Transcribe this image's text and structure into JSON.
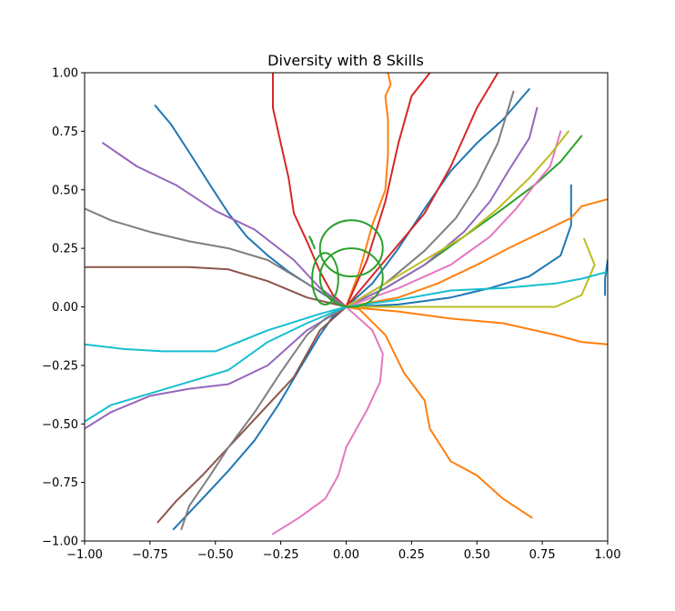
{
  "chart_data": {
    "type": "line",
    "title": "Diversity with 8 Skills",
    "xlabel": "",
    "ylabel": "",
    "xlim": [
      -1.0,
      1.0
    ],
    "ylim": [
      -1.0,
      1.0
    ],
    "grid": false,
    "legend": "none",
    "x_ticks": [
      "−1.00",
      "−0.75",
      "−0.50",
      "−0.25",
      "0.00",
      "0.25",
      "0.50",
      "0.75",
      "1.00"
    ],
    "y_ticks": [
      "−1.00",
      "−0.75",
      "−0.50",
      "−0.25",
      "0.00",
      "0.25",
      "0.50",
      "0.75",
      "1.00"
    ],
    "x_tick_values": [
      -1.0,
      -0.75,
      -0.5,
      -0.25,
      0.0,
      0.25,
      0.5,
      0.75,
      1.0
    ],
    "y_tick_values": [
      -1.0,
      -0.75,
      -0.5,
      -0.25,
      0.0,
      0.25,
      0.5,
      0.75,
      1.0
    ],
    "series": [
      {
        "color": "#1f77b4",
        "x": [
          0.0,
          -0.08,
          -0.15,
          -0.22,
          -0.3,
          -0.38,
          -0.45,
          -0.52,
          -0.6,
          -0.67,
          -0.73
        ],
        "y": [
          0.0,
          0.05,
          0.1,
          0.15,
          0.22,
          0.3,
          0.4,
          0.52,
          0.66,
          0.78,
          0.86
        ]
      },
      {
        "color": "#1f77b4",
        "x": [
          0.0,
          -0.05,
          -0.1,
          -0.17,
          -0.26,
          -0.35,
          -0.45,
          -0.55,
          -0.66
        ],
        "y": [
          0.0,
          -0.04,
          -0.12,
          -0.25,
          -0.42,
          -0.57,
          -0.7,
          -0.82,
          -0.95
        ]
      },
      {
        "color": "#1f77b4",
        "x": [
          0.0,
          0.1,
          0.2,
          0.3,
          0.4,
          0.5,
          0.6,
          0.7
        ],
        "y": [
          0.0,
          0.1,
          0.25,
          0.42,
          0.58,
          0.7,
          0.8,
          0.93
        ]
      },
      {
        "color": "#1f77b4",
        "x": [
          0.0,
          0.2,
          0.4,
          0.55,
          0.7,
          0.82,
          0.86,
          0.86
        ],
        "y": [
          0.0,
          0.01,
          0.04,
          0.08,
          0.13,
          0.22,
          0.35,
          0.52
        ]
      },
      {
        "color": "#1f77b4",
        "x": [
          0.99,
          0.99,
          1.0
        ],
        "y": [
          0.05,
          0.12,
          0.2
        ]
      },
      {
        "color": "#ff7f0e",
        "x": [
          0.0,
          0.05,
          0.15,
          0.22,
          0.3,
          0.32,
          0.4,
          0.5,
          0.6,
          0.71
        ],
        "y": [
          0.0,
          -0.01,
          -0.12,
          -0.28,
          -0.4,
          -0.52,
          -0.66,
          -0.72,
          -0.82,
          -0.9
        ]
      },
      {
        "color": "#ff7f0e",
        "x": [
          0.0,
          0.05,
          0.1,
          0.15,
          0.16,
          0.16,
          0.15,
          0.17,
          0.16
        ],
        "y": [
          0.0,
          0.15,
          0.35,
          0.5,
          0.65,
          0.8,
          0.9,
          0.95,
          1.0
        ]
      },
      {
        "color": "#ff7f0e",
        "x": [
          0.0,
          0.2,
          0.35,
          0.5,
          0.62,
          0.75,
          0.86,
          0.9,
          1.0
        ],
        "y": [
          0.0,
          0.04,
          0.1,
          0.18,
          0.25,
          0.32,
          0.38,
          0.43,
          0.46
        ]
      },
      {
        "color": "#ff7f0e",
        "x": [
          0.0,
          0.2,
          0.4,
          0.6,
          0.8,
          0.9,
          1.0
        ],
        "y": [
          0.0,
          -0.02,
          -0.05,
          -0.07,
          -0.12,
          -0.15,
          -0.16
        ]
      },
      {
        "color": "#2ca02c",
        "x": [
          0.0,
          0.15,
          0.3,
          0.45,
          0.6,
          0.72,
          0.82,
          0.9
        ],
        "y": [
          0.0,
          0.08,
          0.18,
          0.3,
          0.42,
          0.52,
          0.62,
          0.73
        ]
      },
      {
        "color": "#2ca02c",
        "x": [
          -0.13,
          -0.14,
          -0.12
        ],
        "y": [
          0.28,
          0.3,
          0.25
        ]
      },
      {
        "color": "#d62728",
        "x": [
          0.0,
          -0.05,
          -0.1,
          -0.15,
          -0.2,
          -0.22,
          -0.25,
          -0.28,
          -0.28
        ],
        "y": [
          0.0,
          0.05,
          0.15,
          0.28,
          0.4,
          0.55,
          0.7,
          0.85,
          1.0
        ]
      },
      {
        "color": "#d62728",
        "x": [
          0.0,
          0.08,
          0.15,
          0.2,
          0.25,
          0.32
        ],
        "y": [
          0.0,
          0.2,
          0.45,
          0.7,
          0.9,
          1.0
        ]
      },
      {
        "color": "#d62728",
        "x": [
          0.0,
          0.15,
          0.3,
          0.4,
          0.5,
          0.58
        ],
        "y": [
          0.0,
          0.2,
          0.4,
          0.6,
          0.85,
          1.0
        ]
      },
      {
        "color": "#9467bd",
        "x": [
          0.0,
          -0.1,
          -0.2,
          -0.35,
          -0.5,
          -0.65,
          -0.8,
          -0.93
        ],
        "y": [
          0.0,
          0.08,
          0.2,
          0.33,
          0.41,
          0.52,
          0.6,
          0.7
        ]
      },
      {
        "color": "#9467bd",
        "x": [
          0.0,
          -0.15,
          -0.3,
          -0.45,
          -0.6,
          -0.75,
          -0.9,
          -1.0
        ],
        "y": [
          0.0,
          -0.1,
          -0.25,
          -0.33,
          -0.35,
          -0.38,
          -0.45,
          -0.52
        ]
      },
      {
        "color": "#9467bd",
        "x": [
          0.0,
          0.15,
          0.3,
          0.45,
          0.55,
          0.62,
          0.7,
          0.73
        ],
        "y": [
          0.0,
          0.08,
          0.18,
          0.32,
          0.45,
          0.58,
          0.72,
          0.85
        ]
      },
      {
        "color": "#8c564b",
        "x": [
          0.0,
          -0.15,
          -0.3,
          -0.45,
          -0.6,
          -0.75,
          -0.9,
          -1.0
        ],
        "y": [
          0.0,
          0.04,
          0.11,
          0.16,
          0.17,
          0.17,
          0.17,
          0.17
        ]
      },
      {
        "color": "#8c564b",
        "x": [
          0.0,
          -0.1,
          -0.2,
          -0.35,
          -0.45,
          -0.55,
          -0.65,
          -0.72
        ],
        "y": [
          0.0,
          -0.1,
          -0.3,
          -0.48,
          -0.6,
          -0.72,
          -0.83,
          -0.92
        ]
      },
      {
        "color": "#e377c2",
        "x": [
          0.0,
          0.1,
          0.14,
          0.13,
          0.08,
          0.0,
          -0.03,
          -0.08,
          -0.18,
          -0.28
        ],
        "y": [
          0.0,
          -0.1,
          -0.2,
          -0.32,
          -0.44,
          -0.6,
          -0.72,
          -0.82,
          -0.9,
          -0.97
        ]
      },
      {
        "color": "#e377c2",
        "x": [
          0.0,
          0.2,
          0.4,
          0.55,
          0.65,
          0.72,
          0.78,
          0.82
        ],
        "y": [
          0.0,
          0.08,
          0.18,
          0.3,
          0.42,
          0.52,
          0.6,
          0.75
        ]
      },
      {
        "color": "#7f7f7f",
        "x": [
          0.0,
          -0.15,
          -0.3,
          -0.45,
          -0.6,
          -0.75,
          -0.9,
          -1.0
        ],
        "y": [
          0.0,
          0.1,
          0.2,
          0.25,
          0.28,
          0.32,
          0.37,
          0.42
        ]
      },
      {
        "color": "#7f7f7f",
        "x": [
          0.0,
          -0.08,
          -0.15,
          -0.25,
          -0.35,
          -0.45,
          -0.52,
          -0.6,
          -0.63
        ],
        "y": [
          0.0,
          -0.05,
          -0.12,
          -0.28,
          -0.45,
          -0.6,
          -0.72,
          -0.85,
          -0.95
        ]
      },
      {
        "color": "#7f7f7f",
        "x": [
          0.0,
          0.15,
          0.3,
          0.42,
          0.5,
          0.58,
          0.64
        ],
        "y": [
          0.0,
          0.1,
          0.24,
          0.38,
          0.52,
          0.7,
          0.92
        ]
      },
      {
        "color": "#bcbd22",
        "x": [
          0.0,
          0.15,
          0.3,
          0.45,
          0.58,
          0.7,
          0.78,
          0.85
        ],
        "y": [
          0.0,
          0.1,
          0.2,
          0.3,
          0.42,
          0.55,
          0.65,
          0.75
        ]
      },
      {
        "color": "#bcbd22",
        "x": [
          0.0,
          0.2,
          0.4,
          0.6,
          0.8,
          0.9,
          0.95,
          0.91
        ],
        "y": [
          0.0,
          0.0,
          0.0,
          0.0,
          0.0,
          0.05,
          0.18,
          0.29
        ]
      },
      {
        "color": "#17becf",
        "x": [
          0.0,
          -0.1,
          -0.3,
          -0.5,
          -0.7,
          -0.85,
          -1.0
        ],
        "y": [
          0.0,
          -0.03,
          -0.1,
          -0.19,
          -0.19,
          -0.18,
          -0.16
        ]
      },
      {
        "color": "#17becf",
        "x": [
          0.0,
          -0.15,
          -0.3,
          -0.45,
          -0.6,
          -0.75,
          -0.9,
          -1.0
        ],
        "y": [
          0.0,
          -0.07,
          -0.15,
          -0.27,
          -0.32,
          -0.37,
          -0.42,
          -0.49
        ]
      },
      {
        "color": "#17becf",
        "x": [
          0.0,
          0.2,
          0.4,
          0.6,
          0.8,
          0.9,
          1.0
        ],
        "y": [
          0.0,
          0.03,
          0.07,
          0.08,
          0.1,
          0.12,
          0.15
        ]
      }
    ],
    "loops": [
      {
        "color": "#2ca02c",
        "cx": 0.02,
        "cy": 0.25,
        "rx": 0.12,
        "ry": 0.12
      },
      {
        "color": "#2ca02c",
        "cx": 0.02,
        "cy": 0.125,
        "rx": 0.12,
        "ry": 0.125
      },
      {
        "color": "#2ca02c",
        "cx": -0.08,
        "cy": 0.12,
        "rx": 0.05,
        "ry": 0.11
      }
    ]
  }
}
